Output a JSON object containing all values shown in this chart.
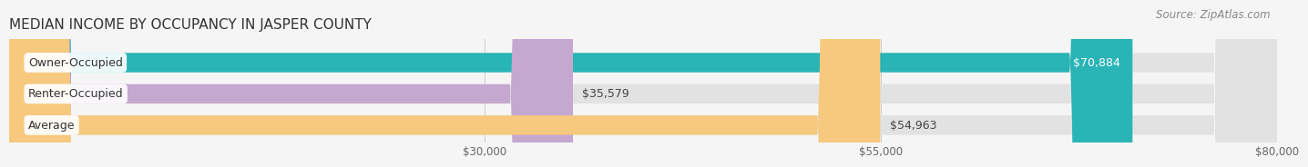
{
  "title": "MEDIAN INCOME BY OCCUPANCY IN JASPER COUNTY",
  "source": "Source: ZipAtlas.com",
  "categories": [
    "Owner-Occupied",
    "Renter-Occupied",
    "Average"
  ],
  "values": [
    70884,
    35579,
    54963
  ],
  "bar_colors": [
    "#29b4b6",
    "#c5a8d0",
    "#f6c97e"
  ],
  "value_labels": [
    "$70,884",
    "$35,579",
    "$54,963"
  ],
  "value_inside": [
    true,
    false,
    false
  ],
  "xmin": 0,
  "xmax": 80000,
  "xticks": [
    30000,
    55000,
    80000
  ],
  "xtick_labels": [
    "$30,000",
    "$55,000",
    "$80,000"
  ],
  "title_fontsize": 11,
  "source_fontsize": 8.5,
  "label_fontsize": 9,
  "value_fontsize": 9,
  "background_color": "#f5f5f5",
  "bar_bg_color": "#e2e2e2",
  "figwidth": 14.06,
  "figheight": 1.96
}
